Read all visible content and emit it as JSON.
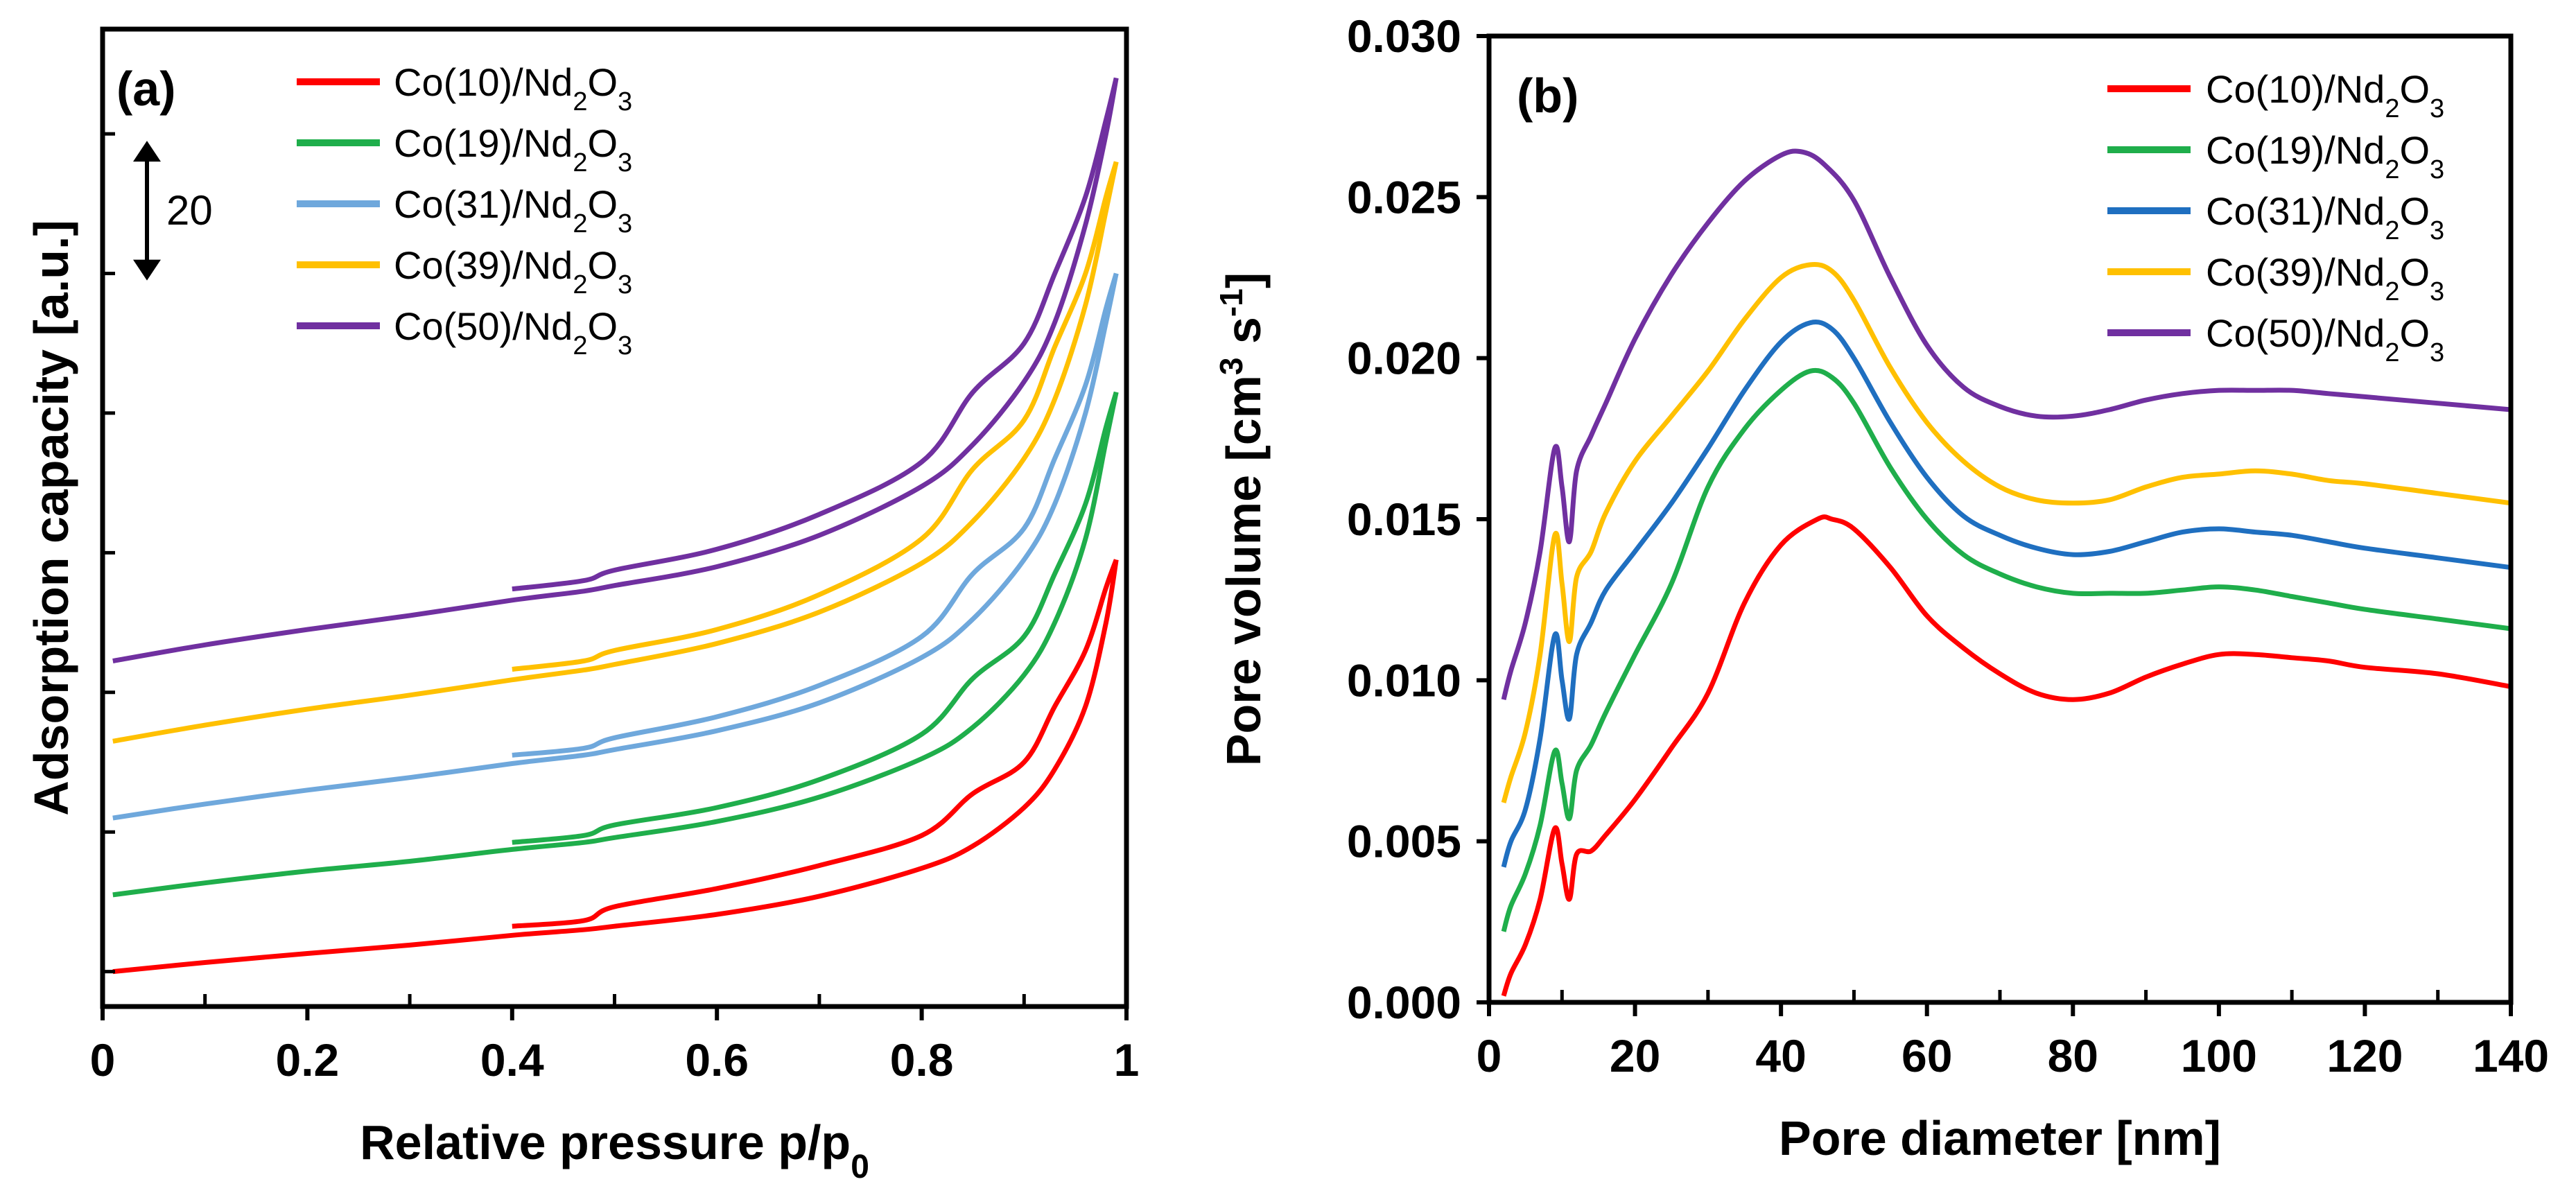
{
  "chart_data": [
    {
      "id": "a",
      "type": "line",
      "panel_label": "(a)",
      "xlabel": "Relative pressure p/p",
      "xlabel_sub": "0",
      "ylabel": "Adsorption capacity [a.u.]",
      "xlim": [
        0,
        1
      ],
      "ylim": [
        -5,
        135
      ],
      "xticks": [
        0,
        0.2,
        0.4,
        0.6,
        0.8,
        1
      ],
      "xtick_labels": [
        "0",
        "0.2",
        "0.4",
        "0.6",
        "0.8",
        "1"
      ],
      "yticks": [
        0,
        20,
        40,
        60,
        80,
        100,
        120
      ],
      "ytick_labels_shown": false,
      "scale_bar": {
        "label": "20",
        "value": 20,
        "y_center": 109
      },
      "legend_position": "top-center",
      "series": [
        {
          "name": "Co(10)/Nd",
          "sub1": "2",
          "mid": "O",
          "sub2": "3",
          "color": "#ff0000",
          "x": [
            0.01,
            0.1,
            0.2,
            0.3,
            0.4,
            0.47,
            0.5,
            0.6,
            0.7,
            0.8,
            0.85,
            0.9,
            0.93,
            0.96,
            0.98,
            0.99
          ],
          "adsorption": [
            0,
            1.3,
            2.6,
            3.8,
            5.2,
            6.0,
            6.5,
            8.2,
            10.8,
            14.8,
            18.0,
            23.5,
            29.0,
            38.0,
            50.0,
            59.0
          ],
          "desorption": [
            59.0,
            55.0,
            46.0,
            38.0,
            30.0,
            25.5,
            19.5,
            15.2,
            11.9,
            9.3,
            7.3,
            6.5
          ]
        },
        {
          "name": "Co(19)/Nd",
          "sub1": "2",
          "mid": "O",
          "sub2": "3",
          "color": "#1fae4b",
          "x": [
            0.01,
            0.1,
            0.2,
            0.3,
            0.4,
            0.47,
            0.5,
            0.6,
            0.7,
            0.8,
            0.85,
            0.9,
            0.93,
            0.96,
            0.98,
            0.99
          ],
          "adsorption": [
            11.0,
            12.7,
            14.4,
            15.8,
            17.5,
            18.5,
            19.2,
            21.5,
            25.0,
            30.5,
            35.0,
            42.5,
            50.0,
            62.0,
            76.0,
            83.0
          ],
          "desorption": [
            83.0,
            78.0,
            67.0,
            57.0,
            48.0,
            42.0,
            34.0,
            27.5,
            23.5,
            21.0,
            19.5,
            18.5
          ]
        },
        {
          "name": "Co(31)/Nd",
          "sub1": "2",
          "mid": "O",
          "sub2": "3",
          "color": "#6fa8dc",
          "x": [
            0.01,
            0.1,
            0.2,
            0.3,
            0.4,
            0.47,
            0.5,
            0.6,
            0.7,
            0.8,
            0.85,
            0.9,
            0.93,
            0.96,
            0.98,
            0.99
          ],
          "adsorption": [
            22.0,
            24.0,
            26.0,
            27.8,
            29.8,
            31.0,
            31.8,
            34.5,
            38.5,
            45.0,
            50.5,
            59.0,
            67.0,
            80.0,
            93.0,
            100.0
          ],
          "desorption": [
            100.0,
            95.0,
            84.0,
            73.5,
            63.5,
            57.0,
            48.0,
            41.0,
            36.5,
            33.5,
            32.0,
            31.0
          ]
        },
        {
          "name": "Co(39)/Nd",
          "sub1": "2",
          "mid": "O",
          "sub2": "3",
          "color": "#ffc000",
          "x": [
            0.01,
            0.1,
            0.2,
            0.3,
            0.4,
            0.47,
            0.5,
            0.6,
            0.7,
            0.8,
            0.85,
            0.9,
            0.93,
            0.96,
            0.98,
            0.99
          ],
          "adsorption": [
            33.0,
            35.3,
            37.6,
            39.6,
            41.8,
            43.2,
            44.0,
            47.0,
            51.5,
            58.5,
            64.5,
            73.5,
            82.0,
            95.5,
            109.0,
            116.0
          ],
          "desorption": [
            116.0,
            111.0,
            100.0,
            89.5,
            79.0,
            72.0,
            62.0,
            54.0,
            49.0,
            46.0,
            44.5,
            43.3
          ]
        },
        {
          "name": "Co(50)/Nd",
          "sub1": "2",
          "mid": "O",
          "sub2": "3",
          "color": "#7030a0",
          "x": [
            0.01,
            0.1,
            0.2,
            0.3,
            0.4,
            0.47,
            0.5,
            0.6,
            0.7,
            0.8,
            0.85,
            0.9,
            0.93,
            0.96,
            0.98,
            0.99
          ],
          "adsorption": [
            44.5,
            46.8,
            49.0,
            51.0,
            53.2,
            54.5,
            55.3,
            58.0,
            62.5,
            69.5,
            75.5,
            84.5,
            93.0,
            107.0,
            120.0,
            128.0
          ],
          "desorption": [
            128.0,
            122.0,
            111.0,
            100.0,
            90.0,
            83.0,
            73.0,
            65.5,
            60.5,
            57.5,
            56.0,
            54.8
          ]
        }
      ]
    },
    {
      "id": "b",
      "type": "line",
      "panel_label": "(b)",
      "xlabel": "Pore diameter [nm]",
      "ylabel": "Pore volume [cm",
      "ylabel_sup1": "3",
      "ylabel_mid": " s",
      "ylabel_sup2": "-1",
      "ylabel_end": "]",
      "xlim": [
        0,
        140
      ],
      "ylim": [
        0,
        0.03
      ],
      "xticks": [
        0,
        20,
        40,
        60,
        80,
        100,
        120,
        140
      ],
      "xtick_labels": [
        "0",
        "20",
        "40",
        "60",
        "80",
        "100",
        "120",
        "140"
      ],
      "yticks": [
        0,
        0.005,
        0.01,
        0.015,
        0.02,
        0.025,
        0.03
      ],
      "ytick_labels": [
        "0.000",
        "0.005",
        "0.010",
        "0.015",
        "0.020",
        "0.025",
        "0.030"
      ],
      "legend_position": "top-right",
      "series": [
        {
          "name": "Co(10)/Nd",
          "sub1": "2",
          "mid": "O",
          "sub2": "3",
          "color": "#ff0000",
          "x": [
            2,
            3,
            5,
            7,
            9,
            10,
            11,
            12,
            14,
            16,
            20,
            25,
            30,
            35,
            40,
            45,
            47,
            50,
            55,
            60,
            65,
            70,
            75,
            80,
            85,
            90,
            95,
            100,
            105,
            110,
            115,
            120,
            130,
            140
          ],
          "y": [
            0.0002,
            0.0009,
            0.0018,
            0.0032,
            0.0054,
            0.0043,
            0.0032,
            0.0046,
            0.0047,
            0.0052,
            0.0063,
            0.0079,
            0.0096,
            0.0124,
            0.0142,
            0.015,
            0.015,
            0.0147,
            0.0135,
            0.012,
            0.011,
            0.0102,
            0.0096,
            0.0094,
            0.0096,
            0.0101,
            0.0105,
            0.0108,
            0.0108,
            0.0107,
            0.0106,
            0.0104,
            0.0102,
            0.0098
          ]
        },
        {
          "name": "Co(19)/Nd",
          "sub1": "2",
          "mid": "O",
          "sub2": "3",
          "color": "#1fae4b",
          "x": [
            2,
            3,
            5,
            7,
            9,
            10,
            11,
            12,
            14,
            16,
            20,
            25,
            30,
            35,
            40,
            44,
            47,
            50,
            55,
            60,
            65,
            70,
            75,
            80,
            85,
            90,
            95,
            100,
            105,
            110,
            115,
            120,
            130,
            140
          ],
          "y": [
            0.0022,
            0.003,
            0.004,
            0.0055,
            0.0078,
            0.0068,
            0.0057,
            0.0072,
            0.008,
            0.009,
            0.0108,
            0.013,
            0.016,
            0.0178,
            0.019,
            0.0196,
            0.0194,
            0.0186,
            0.0166,
            0.015,
            0.0139,
            0.0133,
            0.0129,
            0.0127,
            0.0127,
            0.0127,
            0.0128,
            0.0129,
            0.0128,
            0.0126,
            0.0124,
            0.0122,
            0.0119,
            0.0116
          ]
        },
        {
          "name": "Co(31)/Nd",
          "sub1": "2",
          "mid": "O",
          "sub2": "3",
          "color": "#1f6fc0",
          "x": [
            2,
            3,
            5,
            7,
            9,
            10,
            11,
            12,
            14,
            16,
            20,
            25,
            30,
            35,
            40,
            44,
            47,
            50,
            55,
            60,
            65,
            70,
            75,
            80,
            85,
            90,
            95,
            100,
            105,
            110,
            115,
            120,
            130,
            140
          ],
          "y": [
            0.0042,
            0.005,
            0.006,
            0.0082,
            0.0114,
            0.01,
            0.0088,
            0.0108,
            0.0118,
            0.0128,
            0.014,
            0.0155,
            0.0172,
            0.019,
            0.0205,
            0.0211,
            0.0209,
            0.02,
            0.018,
            0.0163,
            0.0151,
            0.0145,
            0.0141,
            0.0139,
            0.014,
            0.0143,
            0.0146,
            0.0147,
            0.0146,
            0.0145,
            0.0143,
            0.0141,
            0.0138,
            0.0135
          ]
        },
        {
          "name": "Co(39)/Nd",
          "sub1": "2",
          "mid": "O",
          "sub2": "3",
          "color": "#ffc000",
          "x": [
            2,
            3,
            5,
            7,
            9,
            10,
            11,
            12,
            14,
            16,
            20,
            25,
            30,
            35,
            40,
            44,
            47,
            50,
            55,
            60,
            65,
            70,
            75,
            80,
            85,
            90,
            95,
            100,
            105,
            110,
            115,
            120,
            130,
            140
          ],
          "y": [
            0.0062,
            0.007,
            0.0084,
            0.0108,
            0.0145,
            0.013,
            0.0112,
            0.0132,
            0.014,
            0.0152,
            0.0168,
            0.0182,
            0.0196,
            0.0212,
            0.0225,
            0.0229,
            0.0227,
            0.0218,
            0.0197,
            0.018,
            0.0168,
            0.016,
            0.0156,
            0.0155,
            0.0156,
            0.016,
            0.0163,
            0.0164,
            0.0165,
            0.0164,
            0.0162,
            0.0161,
            0.0158,
            0.0155
          ]
        },
        {
          "name": "Co(50)/Nd",
          "sub1": "2",
          "mid": "O",
          "sub2": "3",
          "color": "#7030a0",
          "x": [
            2,
            3,
            5,
            7,
            9,
            10,
            11,
            12,
            14,
            16,
            20,
            25,
            30,
            35,
            40,
            43,
            46,
            50,
            55,
            60,
            65,
            70,
            75,
            80,
            85,
            90,
            95,
            100,
            105,
            110,
            115,
            120,
            130,
            140
          ],
          "y": [
            0.0094,
            0.0103,
            0.0118,
            0.014,
            0.0172,
            0.016,
            0.0143,
            0.0165,
            0.0176,
            0.0186,
            0.0206,
            0.0226,
            0.0242,
            0.0255,
            0.0263,
            0.0264,
            0.026,
            0.0249,
            0.0225,
            0.0204,
            0.0191,
            0.0185,
            0.0182,
            0.0182,
            0.0184,
            0.0187,
            0.0189,
            0.019,
            0.019,
            0.019,
            0.0189,
            0.0188,
            0.0186,
            0.0184
          ]
        }
      ]
    }
  ]
}
